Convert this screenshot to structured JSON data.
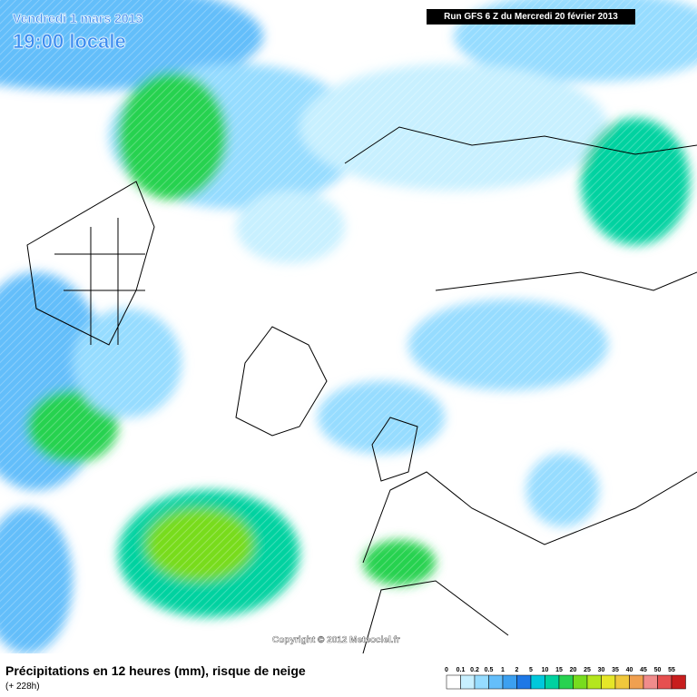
{
  "header": {
    "date": "Vendredi 1 mars 2013",
    "time": "19:00 locale",
    "run": "Run GFS 6 Z du Mercredi 20 février 2013"
  },
  "copyright": "Copyright © 2012 Meteociel.fr",
  "footer": {
    "title": "Précipitations en 12 heures (mm), risque de neige",
    "lead": "(+ 228h)"
  },
  "legend": {
    "values": [
      0,
      0.1,
      0.2,
      0.5,
      1,
      2,
      5,
      10,
      15,
      20,
      25,
      30,
      35,
      40,
      45,
      50,
      55
    ],
    "colors": [
      "#ffffff",
      "#c8f0ff",
      "#96dcff",
      "#64befa",
      "#3ca0f0",
      "#1e78e6",
      "#00c8dc",
      "#00d2a0",
      "#28d250",
      "#78dc1e",
      "#b4e61e",
      "#e6e628",
      "#f0c83c",
      "#f0a050",
      "#f08c8c",
      "#e65050",
      "#c81e1e"
    ]
  }
}
